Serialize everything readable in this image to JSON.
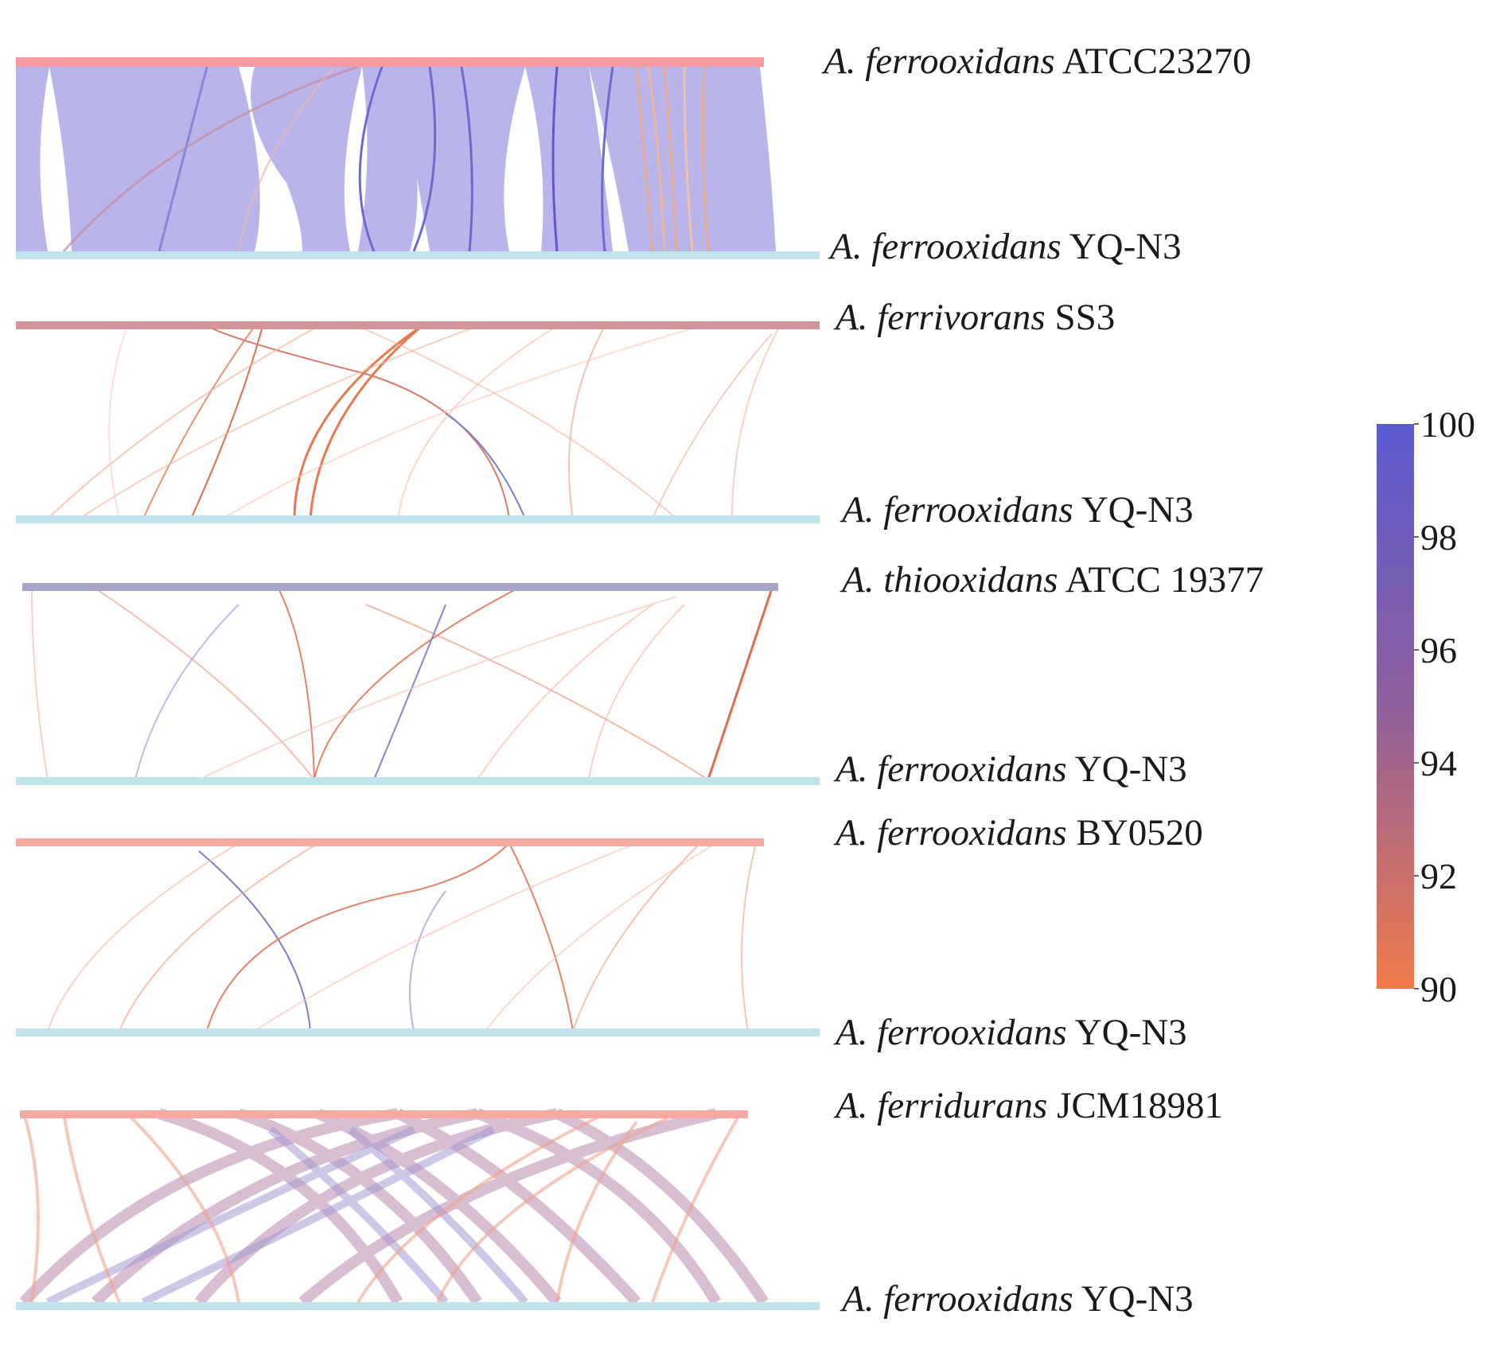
{
  "figure": {
    "panels": [
      {
        "top": {
          "genus": "A. ferrooxidans",
          "strain": "ATCC23270",
          "color": "#f59aa0"
        },
        "bottom": {
          "genus": "A. ferrooxidans",
          "strain": "YQ-N3",
          "color": "#bfe4ec"
        }
      },
      {
        "top": {
          "genus": "A. ferrivorans",
          "strain": "SS3",
          "color": "#d4959a"
        },
        "bottom": {
          "genus": "A. ferrooxidans",
          "strain": "YQ-N3",
          "color": "#bfe4ec"
        }
      },
      {
        "top": {
          "genus": "A. thiooxidans",
          "strain": "ATCC 19377",
          "color": "#a8a6c8"
        },
        "bottom": {
          "genus": "A. ferrooxidans",
          "strain": "YQ-N3",
          "color": "#bfe4ec"
        }
      },
      {
        "top": {
          "genus": "A. ferrooxidans",
          "strain": "BY0520",
          "color": "#f6a8a3"
        },
        "bottom": {
          "genus": "A. ferrooxidans",
          "strain": "YQ-N3",
          "color": "#bfe4ec"
        }
      },
      {
        "top": {
          "genus": "A. ferridurans",
          "strain": "JCM18981",
          "color": "#f6a8a3"
        },
        "bottom": {
          "genus": "A. ferrooxidans",
          "strain": "YQ-N3",
          "color": "#bfe4ec"
        }
      }
    ],
    "colorbar": {
      "min": 90,
      "max": 100,
      "ticks": [
        "100",
        "98",
        "96",
        "94",
        "92",
        "90"
      ],
      "color_high": "#5b5bd1",
      "color_mid": "#8f5f9c",
      "color_low": "#f07a4a"
    }
  }
}
